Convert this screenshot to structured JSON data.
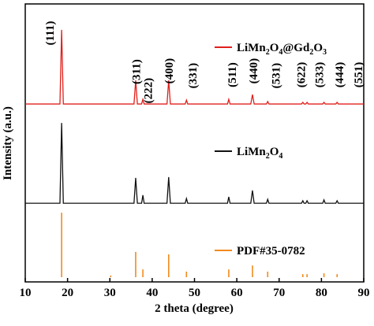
{
  "chart_data": {
    "type": "line",
    "xlabel": "2 theta (degree)",
    "ylabel": "Intensity (a.u.)",
    "xlim": [
      10,
      90
    ],
    "xticks": [
      10,
      20,
      30,
      40,
      50,
      60,
      70,
      80,
      90
    ],
    "ylim": [
      0,
      100
    ],
    "series": [
      {
        "name": "LiMn2O4@Gd2O3",
        "color": "#e0201b",
        "type": "line",
        "x": [
          10,
          18.2,
          18.6,
          19.0,
          35.7,
          36.1,
          36.5,
          37.5,
          37.8,
          38.1,
          43.5,
          43.9,
          44.3,
          47.8,
          48.1,
          48.4,
          57.8,
          58.1,
          58.4,
          63.3,
          63.7,
          64.1,
          67.0,
          67.3,
          67.6,
          75.3,
          75.6,
          75.9,
          76.3,
          76.6,
          76.9,
          80.3,
          80.6,
          80.9,
          83.4,
          83.7,
          84.0,
          90
        ],
        "values": [
          64.0,
          64.0,
          90.7,
          64.0,
          64.0,
          72.5,
          64.0,
          64.0,
          65.7,
          64.0,
          64.0,
          72.5,
          64.0,
          64.0,
          65.4,
          64.0,
          64.0,
          65.7,
          64.0,
          64.0,
          67.4,
          64.0,
          64.0,
          64.9,
          64.0,
          64.0,
          64.6,
          64.0,
          64.0,
          64.6,
          64.0,
          64.0,
          64.6,
          64.0,
          64.0,
          64.6,
          64.0,
          64.0
        ]
      },
      {
        "name": "LiMn2O4",
        "color": "#111111",
        "type": "line",
        "x": [
          10,
          18.2,
          18.6,
          19.0,
          35.7,
          36.1,
          36.5,
          37.5,
          37.8,
          38.1,
          43.5,
          43.9,
          44.3,
          47.8,
          48.1,
          48.4,
          57.8,
          58.1,
          58.4,
          63.3,
          63.7,
          64.1,
          67.0,
          67.3,
          67.6,
          75.3,
          75.6,
          75.9,
          76.3,
          76.6,
          76.9,
          80.3,
          80.6,
          80.9,
          83.4,
          83.7,
          84.0,
          90
        ],
        "values": [
          28.3,
          28.3,
          57.2,
          28.3,
          28.3,
          37.4,
          28.3,
          28.3,
          31.2,
          28.3,
          28.3,
          37.7,
          28.3,
          28.3,
          30.0,
          28.3,
          28.3,
          30.6,
          28.3,
          28.3,
          32.9,
          28.3,
          28.3,
          29.7,
          28.3,
          28.3,
          29.2,
          28.3,
          28.3,
          29.2,
          28.3,
          28.3,
          29.5,
          28.3,
          28.3,
          29.2,
          28.3,
          28.3
        ]
      },
      {
        "name": "PDF#35-0782",
        "color": "#f28a1e",
        "type": "bar",
        "x": [
          18.6,
          30.2,
          36.1,
          37.8,
          43.9,
          48.1,
          58.1,
          63.7,
          67.3,
          75.6,
          76.6,
          80.6,
          83.7
        ],
        "values": [
          24.9,
          2.3,
          10.8,
          4.5,
          9.9,
          3.7,
          4.5,
          5.9,
          3.7,
          2.8,
          2.8,
          3.1,
          2.8
        ]
      }
    ],
    "annotations": [
      {
        "text": "(111)",
        "x": 15.8,
        "y": 89.5
      },
      {
        "text": "(311)",
        "x": 36.2,
        "y": 75.6
      },
      {
        "text": "(222)",
        "x": 39.0,
        "y": 68.8
      },
      {
        "text": "(400)",
        "x": 43.9,
        "y": 75.9
      },
      {
        "text": "(331)",
        "x": 49.5,
        "y": 74.2
      },
      {
        "text": "(511)",
        "x": 58.9,
        "y": 74.5
      },
      {
        "text": "(440)",
        "x": 63.9,
        "y": 75.9
      },
      {
        "text": "(531)",
        "x": 69.2,
        "y": 74.2
      },
      {
        "text": "(622)",
        "x": 75.2,
        "y": 74.5
      },
      {
        "text": "(533)",
        "x": 79.5,
        "y": 74.5
      },
      {
        "text": "(444)",
        "x": 84.2,
        "y": 74.5
      },
      {
        "text": "(551)",
        "x": 88.7,
        "y": 74.5
      }
    ]
  }
}
